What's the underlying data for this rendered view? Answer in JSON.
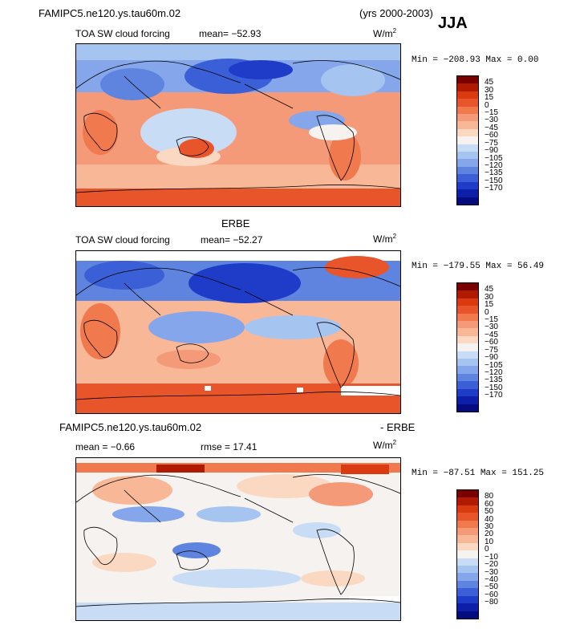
{
  "header": {
    "case_name": "FAMIPC5.ne120.ys.tau60m.02",
    "years": "(yrs 2000-2003)",
    "season": "JJA"
  },
  "panels": [
    {
      "id": "model",
      "title": "",
      "field": "TOA SW cloud forcing",
      "mean_text": "mean= −52.93",
      "units": "W/m",
      "units_sup": "2",
      "minmax": "Min = −208.93  Max =    0.00",
      "levels": [
        "45",
        "30",
        "15",
        "0",
        "−15",
        "−30",
        "−45",
        "−60",
        "−75",
        "−90",
        "−105",
        "−120",
        "−135",
        "−150",
        "−170"
      ]
    },
    {
      "id": "obs",
      "title": "ERBE",
      "field": "TOA SW cloud forcing",
      "mean_text": "mean= −52.27",
      "units": "W/m",
      "units_sup": "2",
      "minmax": "Min = −179.55  Max =   56.49",
      "levels": [
        "45",
        "30",
        "15",
        "0",
        "−15",
        "−30",
        "−45",
        "−60",
        "−75",
        "−90",
        "−105",
        "−120",
        "−135",
        "−150",
        "−170"
      ]
    },
    {
      "id": "diff",
      "title_left": "FAMIPC5.ne120.ys.tau60m.02",
      "title_right": "- ERBE",
      "mean_text": "mean =  −0.66",
      "rmse_text": "rmse =  17.41",
      "units": "W/m",
      "units_sup": "2",
      "minmax": "Min = −87.51  Max = 151.25",
      "levels": [
        "80",
        "60",
        "50",
        "40",
        "30",
        "20",
        "10",
        "0",
        "−10",
        "−20",
        "−30",
        "−40",
        "−50",
        "−60",
        "−80"
      ]
    }
  ],
  "colors": {
    "scale": [
      "#7a0000",
      "#b01a00",
      "#d93a10",
      "#e8552a",
      "#f07a4e",
      "#f59a78",
      "#f8b898",
      "#fbd8c2",
      "#f5f2ef",
      "#c8dcf6",
      "#a6c4f0",
      "#85a6ea",
      "#5f84e0",
      "#3a5fd6",
      "#1f3cc8",
      "#0d1ea8",
      "#050c80"
    ]
  }
}
